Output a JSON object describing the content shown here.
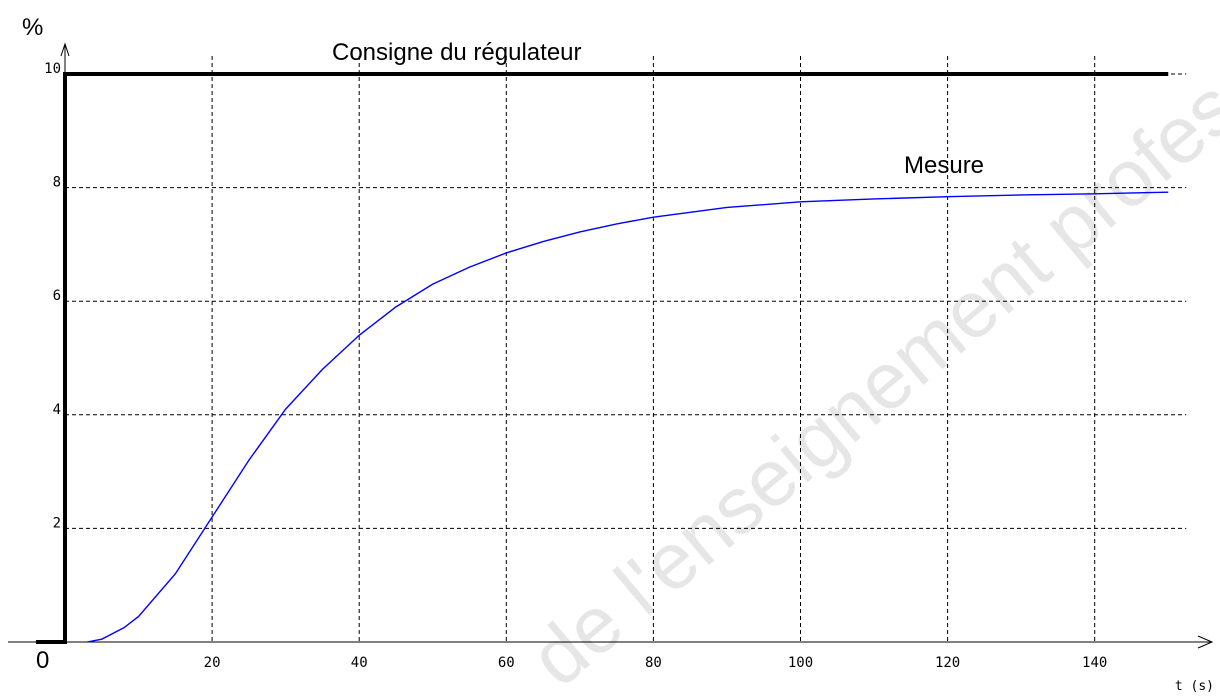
{
  "watermark": "de l'enseignement professionnel",
  "colors": {
    "setpoint": "#000000",
    "measure": "#0000ff",
    "grid": "#000000",
    "watermark": "#e6e6e6"
  },
  "chart_data": {
    "type": "line",
    "title": "",
    "xlabel": "t (s)",
    "ylabel": "%",
    "xlim": [
      0,
      150
    ],
    "ylim": [
      0,
      10
    ],
    "x_ticks": [
      20,
      40,
      60,
      80,
      100,
      120,
      140
    ],
    "y_ticks": [
      2,
      4,
      6,
      8,
      10
    ],
    "y_tick_labels": [
      "2",
      "4",
      "6",
      "8",
      "10"
    ],
    "origin_label": "0",
    "grid": true,
    "series": [
      {
        "name": "Consigne du régulateur",
        "style": "step",
        "x": [
          0,
          0,
          150
        ],
        "y": [
          0,
          10,
          10
        ]
      },
      {
        "name": "Mesure",
        "style": "smooth",
        "x": [
          3,
          5,
          8,
          10,
          15,
          20,
          25,
          30,
          35,
          40,
          45,
          50,
          55,
          60,
          65,
          70,
          75,
          80,
          90,
          100,
          110,
          120,
          130,
          140,
          150
        ],
        "y": [
          0,
          0.05,
          0.25,
          0.45,
          1.2,
          2.2,
          3.2,
          4.1,
          4.8,
          5.4,
          5.9,
          6.3,
          6.6,
          6.85,
          7.05,
          7.22,
          7.36,
          7.48,
          7.65,
          7.75,
          7.8,
          7.84,
          7.87,
          7.89,
          7.92
        ]
      }
    ]
  }
}
